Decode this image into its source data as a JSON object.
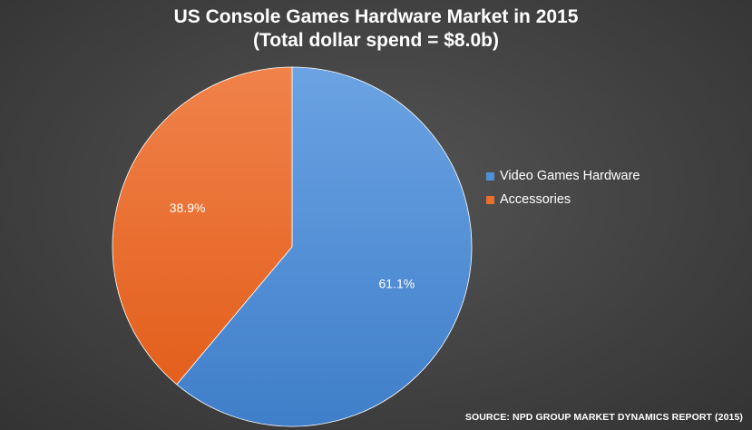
{
  "title": {
    "line1": "US Console Games Hardware Market in 2015",
    "line2": "(Total dollar spend = $8.0b)"
  },
  "source": "SOURCE: NPD GROUP MARKET DYNAMICS REPORT (2015)",
  "chart_data": {
    "type": "pie",
    "title": "US Console Games Hardware Market in 2015",
    "subtitle": "(Total dollar spend = $8.0b)",
    "legend_position": "right",
    "start_angle_deg": 0,
    "direction": "clockwise",
    "slices": [
      {
        "label": "Video Games Hardware",
        "value": 61.1,
        "display": "61.1%",
        "color": "#4f8fd6"
      },
      {
        "label": "Accessories",
        "value": 38.9,
        "display": "38.9%",
        "color": "#ea6f2b"
      }
    ]
  }
}
